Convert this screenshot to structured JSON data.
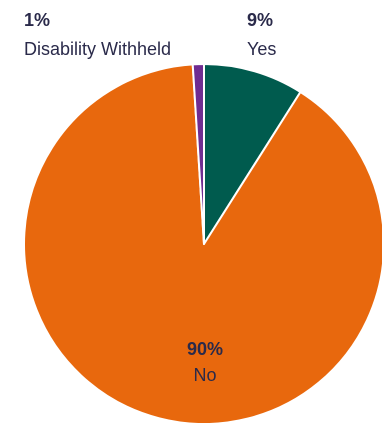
{
  "chart_data": {
    "type": "pie",
    "title": "",
    "slices": [
      {
        "label": "Yes",
        "percent_label": "9%",
        "value": 9,
        "color": "#005b4e"
      },
      {
        "label": "No",
        "percent_label": "90%",
        "value": 90,
        "color": "#e8680d"
      },
      {
        "label": "Disability Withheld",
        "percent_label": "1%",
        "value": 1,
        "color": "#6f2c91"
      }
    ],
    "label_text_color": "#2a2a4a",
    "start_angle_deg": 0,
    "direction": "clockwise"
  }
}
